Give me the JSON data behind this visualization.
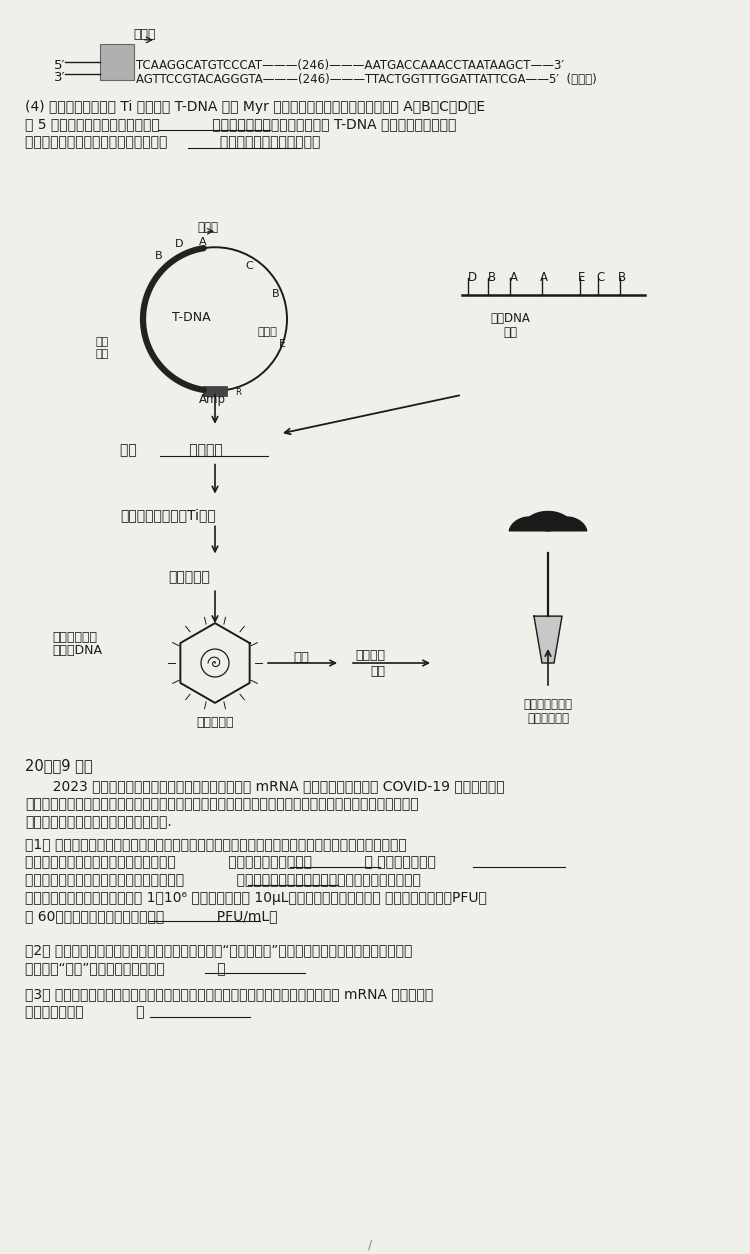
{
  "background_color": "#f0f0eb",
  "text_color": "#1a1a1a",
  "promoter": "启动子",
  "dna_top_5": "5′",
  "dna_top_3": "3′",
  "dna_seq_top": "TCAAGGCATGTCCCAT———(246)———AATGACCAAACCTAATAAGCT——3′",
  "dna_seq_bot": "AGTTCCGTACAGGGTA———(246)———TTACTGGTTTGGATTATTCGA——5′  (模板链)",
  "q4_text1": "(4) 研究人员希望采用 Ti 质粒上的 T-DNA 转移 Myr 基因，以便获得葩卜新品种。图中 A、B、C、D、E",
  "q4_text2": "为 5 种限制酶及其酶切位点，选用            （填字母）进行酶切，以使插入 T-DNA 中的目的基因正确表",
  "q4_text3": "达；将转入目的基因的体细胞培养形成            ，分化成植株，用于生产。",
  "plasmid_label": "T-DNA",
  "terminator": "终止子",
  "rep_origin_1": "复制",
  "rep_origin_2": "原点",
  "amp_r": "Amp",
  "dna_label_1": "目的DNA",
  "dna_label_2": "片段",
  "flow_sel": "选用            进行酶切",
  "flow_recomb": "含目的基因的重组Ti质粒",
  "flow_agro": "土壤农杆菌",
  "flow_cell_label1": "含目的基因的",
  "flow_cell_label2": "染色体DNA",
  "flow_carrot_cell": "葡卜体细胞",
  "flow_form": "形成",
  "flow_diff1": "分化形成",
  "flow_diff2": "植株",
  "flow_detect1": "检测植株合成葩",
  "flow_detect2": "卜硫素的能力",
  "q20_title": "20．（9 分）",
  "q20_intro1": "  2023 年诺贝尔生理学或医学奖获得者主要贡献为 mRNA 疫苗技术及其在抗击 COVID-19 疫情中发挥的",
  "q20_intro2": "有效作用。疫苗是通过抗原诱导免疫系统获得保护性的生物制品，痫苗研发技术路线还有灭活疫苗、弱毒疫",
  "q20_intro3": "苗、重组蛋白疫苗等。回答下列问题。.",
  "q1_header": "（1） 病毒是一种严格寄宿在细胞中生存的生命形式，实验室增殖病毒首先要培养细胞。在体外培养动",
  "q1_text1": "物细胞时，使用合成培养基通常需要加入            ，培养所需气体主要有            ， 为防止细胞代谢",
  "q1_text2": "物积库对细胞自身造成危害，需要定期更换            。通过噪斑计算法可测定病毒滴度，假设在铺满贴",
  "q1_text3": "壁细胞的细胞培养孔板中，接种 1：10⁶ 稺释度的病毒液 10μL，固定染色后计算噪斑数 （噪斑形成单位，PFU）",
  "q1_text4": "为 60，则该孔病毒的滴度测量値为            PFU/mL。",
  "q2_text1": "（2） 我国通过实施计划免疫成功消灯脊高灰质炎，“人民科学家”顾方舟率领团队研制的脊高灰质炎活",
  "q2_text2": "病毒痫苗“糖丸”，从技术路线上属于            。",
  "q3_text1": "（3） 在病毒感染细胞时两者表面相互接触，为了更好地被免疫细胞所识别，在设计 mRNA 疫苗时，病",
  "q3_text2": "毒抗原优先选取            。"
}
